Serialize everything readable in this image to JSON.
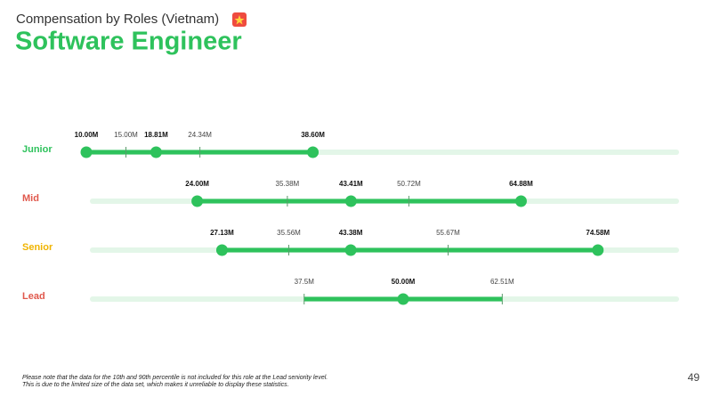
{
  "chart_data": {
    "type": "range",
    "subtitle": "Compensation by Roles (Vietnam)",
    "title": "Software Engineer",
    "bar_color": "#2ec25c",
    "track_color": "#e3f6e8",
    "xlim": [
      0,
      85
    ],
    "series": [
      {
        "name": "Junior",
        "color": "#2ec25c",
        "values": [
          10.0,
          15.0,
          18.81,
          24.34,
          38.6
        ],
        "value_labels": [
          "10.00M",
          "15.00M",
          "18.81M",
          "24.34M",
          "38.60M"
        ]
      },
      {
        "name": "Mid",
        "color": "#e0584c",
        "values": [
          24.0,
          35.38,
          43.41,
          50.72,
          64.88
        ],
        "value_labels": [
          "24.00M",
          "35.38M",
          "43.41M",
          "50.72M",
          "64.88M"
        ]
      },
      {
        "name": "Senior",
        "color": "#f0b400",
        "values": [
          27.13,
          35.56,
          43.38,
          55.67,
          74.58
        ],
        "value_labels": [
          "27.13M",
          "35.56M",
          "43.38M",
          "55.67M",
          "74.58M"
        ]
      },
      {
        "name": "Lead",
        "color": "#e0584c",
        "values": [
          null,
          37.5,
          50.0,
          62.51,
          null
        ],
        "value_labels": [
          null,
          "37.5M",
          "50.00M",
          "62.51M",
          null
        ]
      }
    ],
    "footnote": [
      "Please note that the data for the 10th and 90th percentile is not included for this role at the Lead seniority level.",
      "This is due to the limited size of the data set, which makes it unreliable to display these statistics."
    ],
    "page_number": "49"
  }
}
